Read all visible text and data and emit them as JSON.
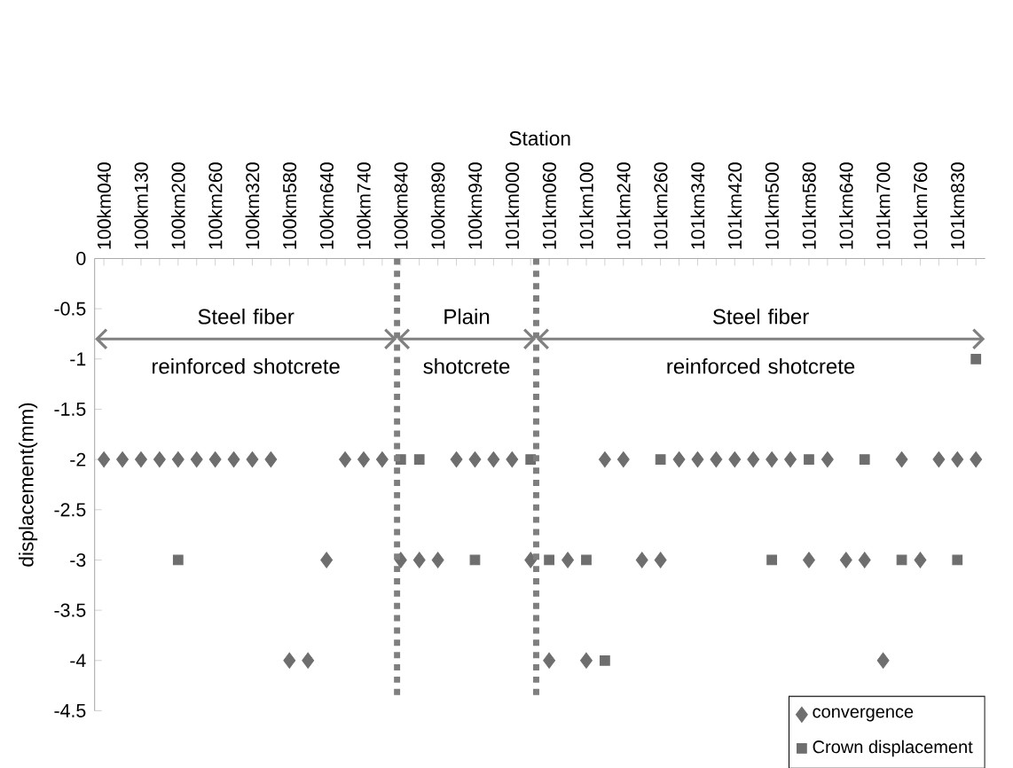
{
  "chart_data": {
    "type": "scatter",
    "xlabel": "Station",
    "ylabel": "displacement(mm)",
    "categories": [
      "100km040",
      null,
      "100km130",
      null,
      "100km200",
      null,
      "100km260",
      null,
      "100km320",
      null,
      "100km580",
      null,
      "100km640",
      null,
      "100km740",
      null,
      "100km840",
      null,
      "100km890",
      null,
      "100km940",
      null,
      "101km000",
      null,
      "101km060",
      null,
      "101km100",
      null,
      "101km240",
      null,
      "101km260",
      null,
      "101km340",
      null,
      "101km420",
      null,
      "101km500",
      null,
      "101km580",
      null,
      "101km640",
      null,
      "101km700",
      null,
      "101km760",
      null,
      "101km830",
      null
    ],
    "series": [
      {
        "name": "convergence",
        "color": "#6e6e6e",
        "marker": "diamond",
        "values": [
          -2,
          -2,
          -2,
          -2,
          -2,
          -2,
          -2,
          -2,
          -2,
          -2,
          -4,
          -4,
          -3,
          -2,
          -2,
          -2,
          -3,
          -3,
          -3,
          -2,
          -2,
          -2,
          -2,
          -3,
          -4,
          -3,
          -4,
          -2,
          -2,
          -3,
          -3,
          -2,
          -2,
          -2,
          -2,
          -2,
          -2,
          -2,
          -3,
          -2,
          -3,
          -3,
          -4,
          -2,
          -3,
          -2,
          -2,
          -2
        ]
      },
      {
        "name": "Crown displacement",
        "color": "#6e6e6e",
        "marker": "square",
        "values": [
          null,
          null,
          null,
          null,
          -3,
          null,
          null,
          null,
          null,
          null,
          null,
          null,
          null,
          null,
          null,
          null,
          -2,
          -2,
          null,
          null,
          -3,
          null,
          null,
          -2,
          -3,
          null,
          -3,
          -4,
          null,
          null,
          -2,
          null,
          null,
          null,
          null,
          null,
          -3,
          null,
          -2,
          null,
          null,
          -2,
          null,
          -3,
          null,
          null,
          -3,
          -1
        ]
      }
    ],
    "ylim": [
      -4.5,
      0
    ],
    "yticks": [
      -4.5,
      -4,
      -3.5,
      -3,
      -2.5,
      -2,
      -1.5,
      -1,
      -0.5,
      0
    ],
    "annotations": [
      "Steel fiber reinforced shotcrete",
      "Plain shotcrete",
      "Steel fiber reinforced shotcrete"
    ],
    "legend": "bottom right",
    "grid": false
  }
}
